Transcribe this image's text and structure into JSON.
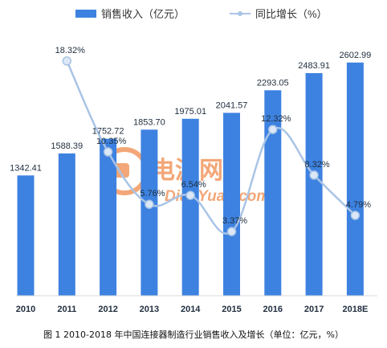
{
  "caption": "图 1 2010-2018 年中国连接器制造行业销售收入及增长（单位：亿元，%）",
  "watermark": {
    "brand_cn": "电源网",
    "brand_en": "DianYuan.com",
    "color": "#f08a4b"
  },
  "chart_data": {
    "type": "bar",
    "categories": [
      "2010",
      "2011",
      "2012",
      "2013",
      "2014",
      "2015",
      "2016",
      "2017",
      "2018E"
    ],
    "series": [
      {
        "name": "销售收入（亿元）",
        "type": "bar",
        "color": "#3d82e0",
        "values": [
          1342.41,
          1588.39,
          1752.72,
          1853.7,
          1975.01,
          2041.57,
          2293.05,
          2483.91,
          2602.99
        ],
        "labels": [
          "1342.41",
          "1588.39",
          "1752.72",
          "1853.70",
          "1975.01",
          "2041.57",
          "2293.05",
          "2483.91",
          "2602.99"
        ]
      },
      {
        "name": "同比增长（%）",
        "type": "line",
        "color": "#a9c4e6",
        "values": [
          null,
          18.32,
          10.35,
          5.76,
          6.54,
          3.37,
          12.32,
          8.32,
          4.79
        ],
        "labels": [
          "",
          "18.32%",
          "10.35%",
          "5.76%",
          "6.54%",
          "3.37%",
          "12.32%",
          "8.32%",
          "4.79%"
        ]
      }
    ],
    "legend_position": "top",
    "grid": false
  }
}
